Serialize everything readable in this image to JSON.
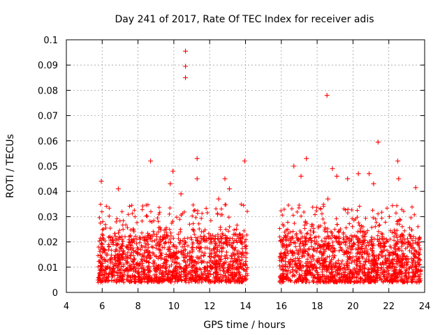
{
  "chart_data": {
    "type": "scatter",
    "title": "Day 241 of 2017, Rate Of TEC Index for receiver adis",
    "xlabel": "GPS time / hours",
    "ylabel": "ROTI / TECUs",
    "xlim": [
      4,
      24
    ],
    "ylim": [
      0,
      0.1
    ],
    "xticks": [
      "4",
      "6",
      "8",
      "10",
      "12",
      "14",
      "16",
      "18",
      "20",
      "22",
      "24"
    ],
    "yticks": [
      "0",
      "0.01",
      "0.02",
      "0.03",
      "0.04",
      "0.05",
      "0.06",
      "0.07",
      "0.08",
      "0.09",
      "0.1"
    ],
    "grid": true,
    "marker": "plus",
    "color": "#ff0000",
    "segments": [
      {
        "x_start": 5.75,
        "x_end": 14.1,
        "typical_range": [
          0.004,
          0.022
        ],
        "spread_to": 0.035
      },
      {
        "x_start": 15.9,
        "x_end": 23.8,
        "typical_range": [
          0.004,
          0.022
        ],
        "spread_to": 0.035
      }
    ],
    "notable_points": [
      {
        "x": 10.65,
        "y": 0.0955
      },
      {
        "x": 10.65,
        "y": 0.0895
      },
      {
        "x": 10.65,
        "y": 0.085
      },
      {
        "x": 18.55,
        "y": 0.078
      },
      {
        "x": 21.4,
        "y": 0.0595
      },
      {
        "x": 11.3,
        "y": 0.053
      },
      {
        "x": 17.4,
        "y": 0.053
      },
      {
        "x": 8.7,
        "y": 0.052
      },
      {
        "x": 22.5,
        "y": 0.052
      },
      {
        "x": 13.95,
        "y": 0.052
      },
      {
        "x": 16.7,
        "y": 0.05
      },
      {
        "x": 18.85,
        "y": 0.049
      },
      {
        "x": 9.95,
        "y": 0.048
      },
      {
        "x": 20.3,
        "y": 0.047
      },
      {
        "x": 20.9,
        "y": 0.047
      },
      {
        "x": 11.3,
        "y": 0.045
      },
      {
        "x": 22.55,
        "y": 0.045
      },
      {
        "x": 12.85,
        "y": 0.045
      },
      {
        "x": 19.1,
        "y": 0.046
      },
      {
        "x": 19.7,
        "y": 0.045
      },
      {
        "x": 17.1,
        "y": 0.046
      },
      {
        "x": 5.95,
        "y": 0.044
      },
      {
        "x": 6.9,
        "y": 0.041
      },
      {
        "x": 10.4,
        "y": 0.039
      },
      {
        "x": 13.1,
        "y": 0.041
      },
      {
        "x": 23.5,
        "y": 0.0415
      },
      {
        "x": 21.15,
        "y": 0.043
      },
      {
        "x": 18.6,
        "y": 0.037
      },
      {
        "x": 12.5,
        "y": 0.037
      },
      {
        "x": 9.8,
        "y": 0.043
      }
    ]
  }
}
